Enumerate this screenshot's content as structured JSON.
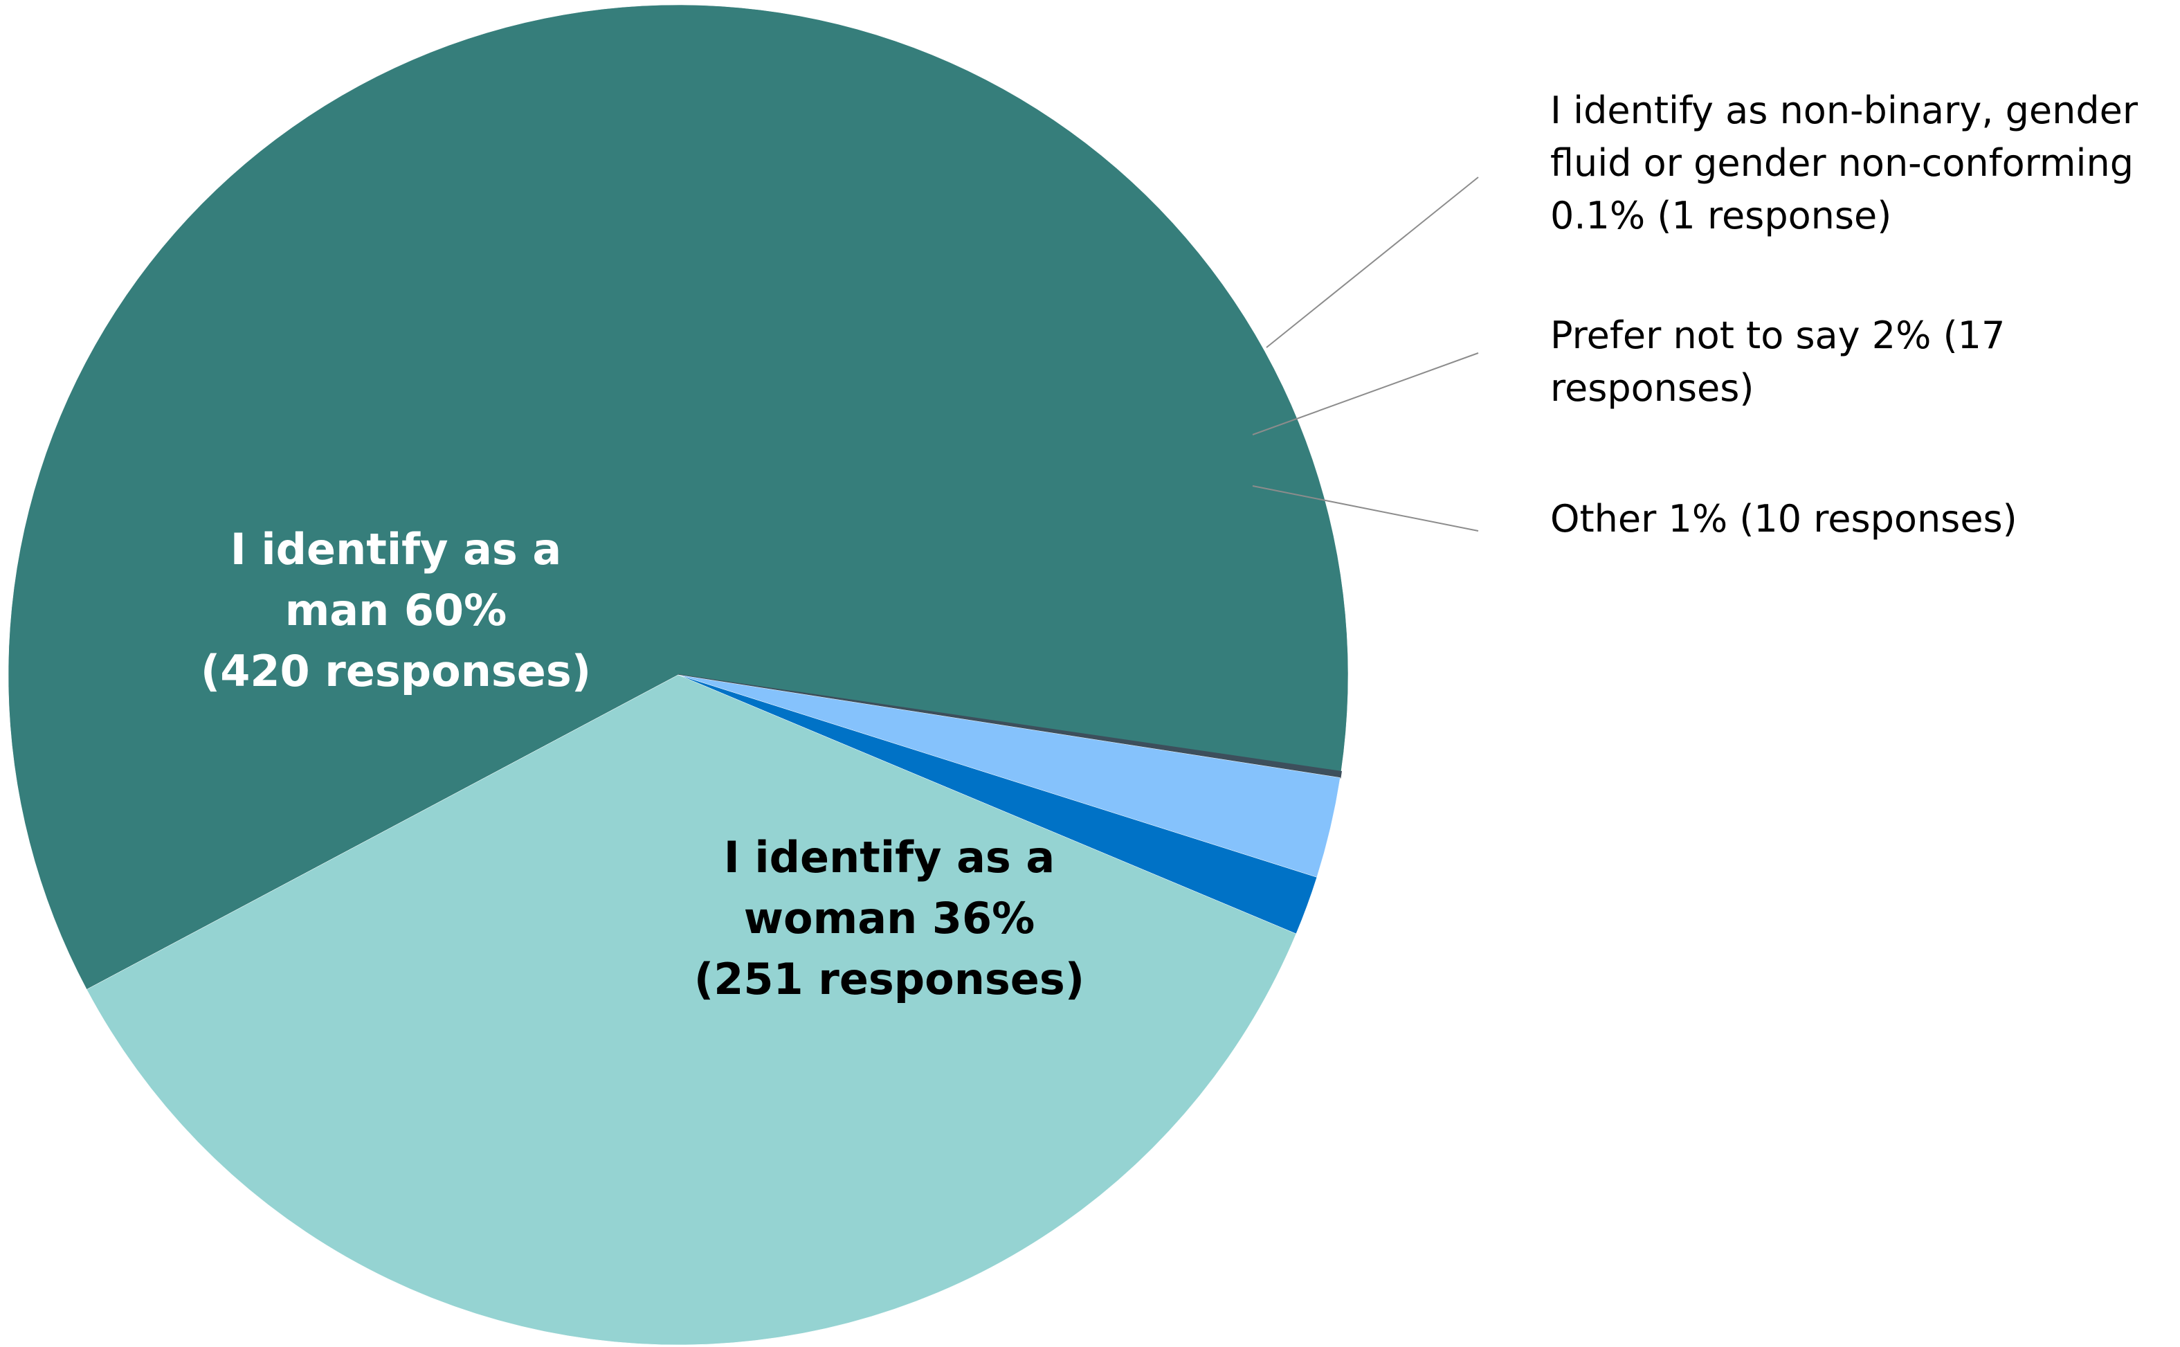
{
  "chart_data": {
    "type": "pie",
    "slices": [
      {
        "key": "man",
        "label": "I identify as a man 60% (420 responses)",
        "label_lines": [
          "I identify as a",
          "man 60%",
          "(420 responses)"
        ],
        "value": 420,
        "percent": 60,
        "color": "#367e7b",
        "label_color": "#ffffff",
        "label_style": "inside-bold"
      },
      {
        "key": "nonbinary",
        "label": "I identify as non-binary, gender fluid or gender non-conforming 0.1% (1 response)",
        "label_lines": [
          "I identify as non-binary, gender",
          "fluid or gender non-conforming",
          "0.1% (1 response)"
        ],
        "value": 1,
        "percent": 0.1,
        "color": "#3d4f5c",
        "label_color": "#000000",
        "label_style": "outside-leader"
      },
      {
        "key": "prefer_not",
        "label": "Prefer not to say 2% (17 responses)",
        "label_lines": [
          "Prefer not to say 2% (17",
          "responses)"
        ],
        "value": 17,
        "percent": 2,
        "color": "#85c2fc",
        "label_color": "#000000",
        "label_style": "outside-leader"
      },
      {
        "key": "other",
        "label": "Other 1% (10 responses)",
        "label_lines": [
          "Other 1% (10 responses)"
        ],
        "value": 10,
        "percent": 1,
        "color": "#0072c6",
        "label_color": "#000000",
        "label_style": "outside-leader"
      },
      {
        "key": "woman",
        "label": "I identify as a woman 36% (251 responses)",
        "label_lines": [
          "I identify as a",
          "woman 36%",
          "(251 responses)"
        ],
        "value": 251,
        "percent": 36,
        "color": "#95d3d2",
        "label_color": "#000000",
        "label_style": "inside-bold"
      }
    ],
    "start_angle_deg": 208,
    "direction": "clockwise",
    "legend": "none"
  }
}
